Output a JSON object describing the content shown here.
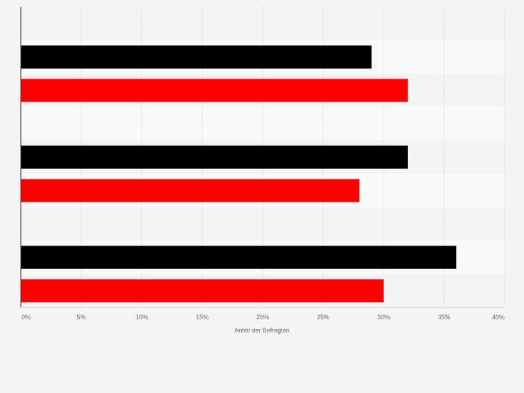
{
  "chart_data": {
    "type": "bar",
    "orientation": "horizontal",
    "categories": [
      "",
      "",
      ""
    ],
    "series": [
      {
        "values": [
          0.29,
          0.32,
          0.36
        ]
      },
      {
        "values": [
          0.32,
          0.28,
          0.3
        ]
      }
    ],
    "series_colors": [
      "#000000",
      "#ff0000"
    ],
    "xlabel": "Anteil der Befragten",
    "ylabel": "",
    "xlim": [
      0,
      0.4
    ],
    "x_ticks": [
      0,
      0.05,
      0.1,
      0.15,
      0.2,
      0.25,
      0.3,
      0.35,
      0.4
    ],
    "x_tick_labels": [
      "0%",
      "5%",
      "10%",
      "15%",
      "20%",
      "25%",
      "30%",
      "35%",
      "40%"
    ],
    "grid": "vertical dashed",
    "legend": "none",
    "colors": {
      "background": "#f4f4f4",
      "band_light": "#f9f9f9",
      "band_dark": "#f4f4f4",
      "grid": "#d6d6d6",
      "axis": "#333333",
      "tick_text": "#666666"
    }
  }
}
